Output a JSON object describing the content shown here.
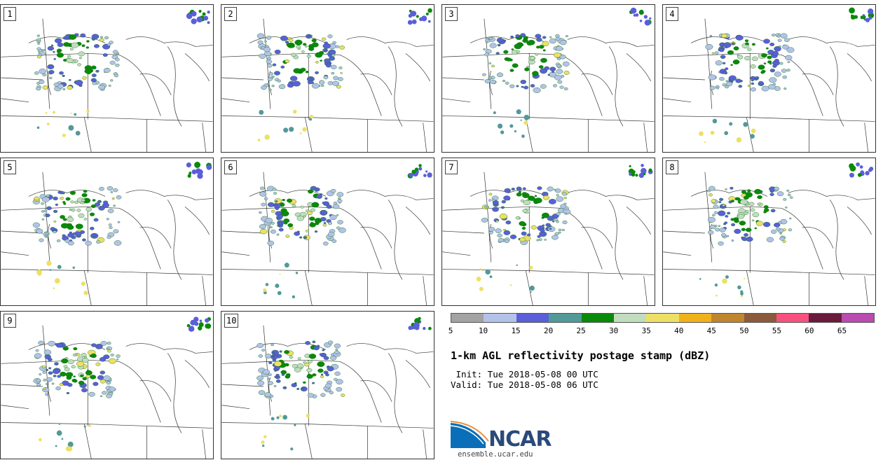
{
  "title": "1-km AGL reflectivity postage stamp (dBZ)",
  "init_label": " Init: Tue 2018-05-08 00 UTC",
  "valid_label": "Valid: Tue 2018-05-08 06 UTC",
  "logo_text": "NCAR",
  "url": "ensemble.ucar.edu",
  "panels": [
    "1",
    "2",
    "3",
    "4",
    "5",
    "6",
    "7",
    "8",
    "9",
    "10"
  ],
  "colorbar": {
    "ticks": [
      "5",
      "10",
      "15",
      "20",
      "25",
      "30",
      "35",
      "40",
      "45",
      "50",
      "55",
      "60",
      "65"
    ],
    "colors": [
      "#a3a3a3",
      "#b4c2ea",
      "#5a5fd9",
      "#52999a",
      "#0a8a0a",
      "#c2dcc0",
      "#ede064",
      "#f0b21a",
      "#bf862f",
      "#8b5a3c",
      "#f75180",
      "#6a1a3a",
      "#b94bb1"
    ]
  }
}
